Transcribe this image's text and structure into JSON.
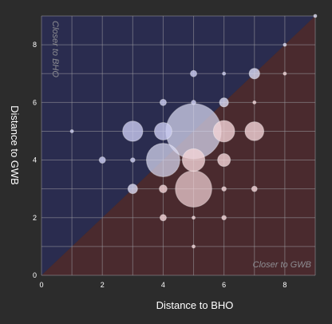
{
  "chart_data": {
    "type": "scatter",
    "xlabel": "Distance to BHO",
    "ylabel": "Distance to GWB",
    "xlim": [
      0,
      9
    ],
    "ylim": [
      0,
      9
    ],
    "x_ticks": [
      0,
      2,
      4,
      6,
      8
    ],
    "y_ticks": [
      0,
      2,
      4,
      6,
      8
    ],
    "grid": true,
    "regions": [
      {
        "label": "Closer to BHO",
        "side": "upper-left",
        "color": "#2a2c4f"
      },
      {
        "label": "Closer to GWB",
        "side": "lower-right",
        "color": "#4a2a2e"
      }
    ],
    "diagonal": [
      0,
      9
    ],
    "bubble_colors": {
      "above_diagonal": "#c9cbf0",
      "below_diagonal": "#f3d3d7",
      "on_diagonal": "#d9d9f2"
    },
    "points": [
      {
        "x": 1,
        "y": 5,
        "size": 1
      },
      {
        "x": 2,
        "y": 4,
        "size": 4
      },
      {
        "x": 3,
        "y": 5,
        "size": 40
      },
      {
        "x": 3,
        "y": 4,
        "size": 2
      },
      {
        "x": 3,
        "y": 3,
        "size": 9
      },
      {
        "x": 4,
        "y": 6,
        "size": 4
      },
      {
        "x": 4,
        "y": 5,
        "size": 30
      },
      {
        "x": 4,
        "y": 4,
        "size": 110
      },
      {
        "x": 4,
        "y": 3,
        "size": 6
      },
      {
        "x": 4,
        "y": 2,
        "size": 4
      },
      {
        "x": 5,
        "y": 7,
        "size": 4
      },
      {
        "x": 5,
        "y": 6,
        "size": 2
      },
      {
        "x": 5,
        "y": 5,
        "size": 300
      },
      {
        "x": 5,
        "y": 4,
        "size": 50
      },
      {
        "x": 5,
        "y": 3,
        "size": 130
      },
      {
        "x": 5,
        "y": 2,
        "size": 1
      },
      {
        "x": 5,
        "y": 1,
        "size": 1
      },
      {
        "x": 6,
        "y": 7,
        "size": 1
      },
      {
        "x": 6,
        "y": 6,
        "size": 8
      },
      {
        "x": 6,
        "y": 5,
        "size": 45
      },
      {
        "x": 6,
        "y": 4,
        "size": 16
      },
      {
        "x": 6,
        "y": 3,
        "size": 2
      },
      {
        "x": 6,
        "y": 2,
        "size": 2
      },
      {
        "x": 7,
        "y": 7,
        "size": 11
      },
      {
        "x": 7,
        "y": 6,
        "size": 1
      },
      {
        "x": 7,
        "y": 5,
        "size": 35
      },
      {
        "x": 7,
        "y": 3,
        "size": 3
      },
      {
        "x": 8,
        "y": 8,
        "size": 1
      },
      {
        "x": 8,
        "y": 7,
        "size": 1
      },
      {
        "x": 9,
        "y": 9,
        "size": 1
      }
    ]
  }
}
